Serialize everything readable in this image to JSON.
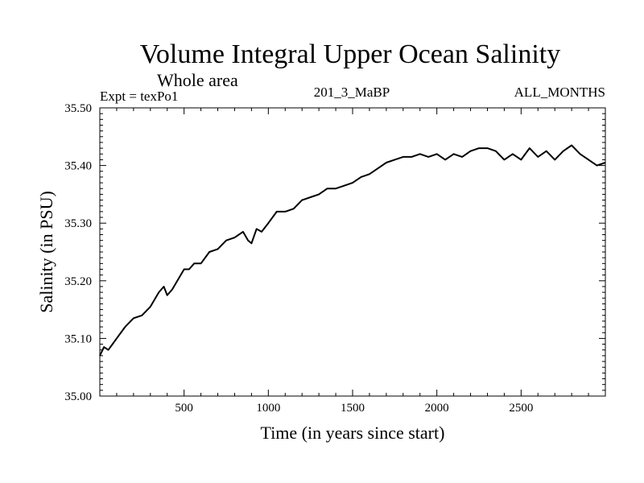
{
  "chart_data": {
    "type": "line",
    "title": "Volume Integral Upper Ocean Salinity",
    "subtitle": "Whole area",
    "annotations": {
      "left": "Expt = texPo1",
      "center": "201_3_MaBP",
      "right": "ALL_MONTHS"
    },
    "xlabel": "Time (in years since start)",
    "ylabel": "Salinity (in PSU)",
    "xlim": [
      0,
      3000
    ],
    "ylim": [
      35.0,
      35.5
    ],
    "xticks": [
      500,
      1000,
      1500,
      2000,
      2500
    ],
    "xtick_labels": [
      "500",
      "1000",
      "1500",
      "2000",
      "2500"
    ],
    "yticks": [
      35.0,
      35.1,
      35.2,
      35.3,
      35.4,
      35.5
    ],
    "ytick_labels": [
      "35.00",
      "35.10",
      "35.20",
      "35.30",
      "35.40",
      "35.50"
    ],
    "grid": false,
    "series": [
      {
        "color": "#000000",
        "x": [
          0,
          25,
          50,
          75,
          100,
          150,
          200,
          250,
          300,
          350,
          380,
          400,
          430,
          460,
          500,
          530,
          560,
          600,
          650,
          700,
          750,
          800,
          850,
          880,
          900,
          930,
          960,
          1000,
          1050,
          1100,
          1150,
          1200,
          1250,
          1300,
          1350,
          1400,
          1450,
          1500,
          1550,
          1600,
          1650,
          1700,
          1750,
          1800,
          1850,
          1900,
          1950,
          2000,
          2050,
          2100,
          2150,
          2200,
          2250,
          2300,
          2350,
          2400,
          2450,
          2500,
          2550,
          2600,
          2650,
          2700,
          2750,
          2800,
          2850,
          2900,
          2950,
          3000
        ],
        "values": [
          35.07,
          35.085,
          35.08,
          35.09,
          35.1,
          35.12,
          35.135,
          35.14,
          35.155,
          35.18,
          35.19,
          35.175,
          35.185,
          35.2,
          35.22,
          35.22,
          35.23,
          35.23,
          35.25,
          35.255,
          35.27,
          35.275,
          35.285,
          35.27,
          35.265,
          35.29,
          35.285,
          35.3,
          35.32,
          35.32,
          35.325,
          35.34,
          35.345,
          35.35,
          35.36,
          35.36,
          35.365,
          35.37,
          35.38,
          35.385,
          35.395,
          35.405,
          35.41,
          35.415,
          35.415,
          35.42,
          35.415,
          35.42,
          35.41,
          35.42,
          35.415,
          35.425,
          35.43,
          35.43,
          35.425,
          35.41,
          35.42,
          35.41,
          35.43,
          35.415,
          35.425,
          35.41,
          35.425,
          35.435,
          35.42,
          35.41,
          35.4,
          35.405
        ]
      }
    ]
  }
}
